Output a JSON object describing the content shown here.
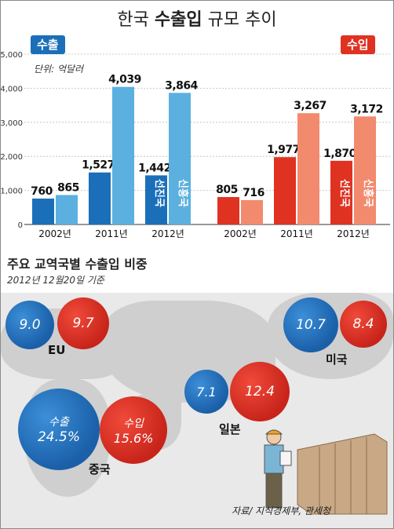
{
  "title": {
    "prefix": "한국 ",
    "bold": "수출입",
    "suffix": " 규모 추이"
  },
  "export_tag": "수출",
  "import_tag": "수입",
  "unit": "단위: 억달러",
  "chart_data": {
    "type": "bar",
    "title": "한국 수출입 규모 추이",
    "unit": "억달러",
    "ylim": [
      0,
      5000
    ],
    "yticks": [
      "5,000",
      "4,000",
      "3,000",
      "2,000",
      "1,000",
      "0"
    ],
    "categories": [
      "2002년",
      "2011년",
      "2012년"
    ],
    "groups": [
      {
        "name": "수출",
        "series": [
          {
            "name": "선진국",
            "values": [
              760,
              1527,
              1442
            ],
            "labels": [
              "760",
              "1,527",
              "1,442"
            ],
            "color": "#1b6fb8"
          },
          {
            "name": "신흥국",
            "values": [
              865,
              4039,
              3864
            ],
            "labels": [
              "865",
              "4,039",
              "3,864"
            ],
            "color": "#5bb0e0"
          }
        ]
      },
      {
        "name": "수입",
        "series": [
          {
            "name": "선진국",
            "values": [
              805,
              1977,
              1870
            ],
            "labels": [
              "805",
              "1,977",
              "1,870"
            ],
            "color": "#e03221"
          },
          {
            "name": "신흥국",
            "values": [
              716,
              3267,
              3172
            ],
            "labels": [
              "716",
              "3,267",
              "3,172"
            ],
            "color": "#f28a6e"
          }
        ]
      }
    ]
  },
  "section2": {
    "title": "주요 교역국별 수출입 비중",
    "date": "2012년 12월20일 기준"
  },
  "map_circles": [
    {
      "country": "EU",
      "export": "9.0",
      "import": "9.7"
    },
    {
      "country": "미국",
      "export": "10.7",
      "import": "8.4"
    },
    {
      "country": "일본",
      "export": "7.1",
      "import": "12.4"
    },
    {
      "country": "중국",
      "export": "24.5%",
      "import": "15.6%",
      "export_label": "수출",
      "import_label": "수입"
    }
  ],
  "source": "자료/ 지식경제부, 관세청"
}
